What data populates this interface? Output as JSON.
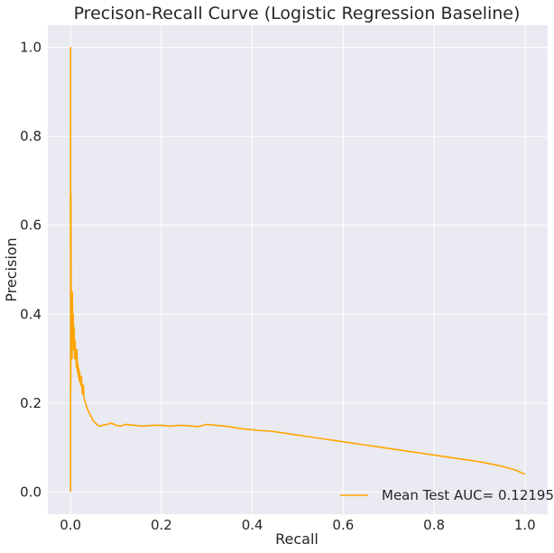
{
  "chart_data": {
    "type": "line",
    "title": "Precison-Recall Curve (Logistic Regression Baseline)",
    "xlabel": "Recall",
    "ylabel": "Precision",
    "xlim": [
      -0.05,
      1.05
    ],
    "ylim": [
      -0.05,
      1.05
    ],
    "xticks": [
      0.0,
      0.2,
      0.4,
      0.6,
      0.8,
      1.0
    ],
    "yticks": [
      0.0,
      0.2,
      0.4,
      0.6,
      0.8,
      1.0
    ],
    "xtick_labels": [
      "0.0",
      "0.2",
      "0.4",
      "0.6",
      "0.8",
      "1.0"
    ],
    "ytick_labels": [
      "0.0",
      "0.2",
      "0.4",
      "0.6",
      "0.8",
      "1.0"
    ],
    "grid": true,
    "background_color": "#eaeaf2",
    "legend_position": "bottom-right",
    "series": [
      {
        "name": "Mean Test AUC= 0.12195",
        "color": "#ffa500",
        "x": [
          0.0,
          0.0,
          0.0005,
          0.001,
          0.0015,
          0.002,
          0.0025,
          0.003,
          0.0035,
          0.004,
          0.005,
          0.006,
          0.007,
          0.008,
          0.009,
          0.01,
          0.011,
          0.012,
          0.013,
          0.014,
          0.015,
          0.016,
          0.017,
          0.018,
          0.019,
          0.02,
          0.022,
          0.024,
          0.026,
          0.028,
          0.03,
          0.033,
          0.036,
          0.04,
          0.045,
          0.05,
          0.055,
          0.06,
          0.065,
          0.07,
          0.08,
          0.09,
          0.1,
          0.11,
          0.12,
          0.14,
          0.16,
          0.18,
          0.2,
          0.22,
          0.24,
          0.26,
          0.28,
          0.3,
          0.32,
          0.34,
          0.36,
          0.38,
          0.4,
          0.42,
          0.44,
          0.46,
          0.48,
          0.5,
          0.52,
          0.54,
          0.56,
          0.58,
          0.6,
          0.62,
          0.64,
          0.66,
          0.68,
          0.7,
          0.72,
          0.74,
          0.76,
          0.78,
          0.8,
          0.82,
          0.84,
          0.86,
          0.88,
          0.9,
          0.92,
          0.94,
          0.96,
          0.98,
          1.0
        ],
        "y": [
          0.0,
          1.0,
          0.23,
          0.67,
          0.3,
          0.43,
          0.36,
          0.38,
          0.3,
          0.45,
          0.35,
          0.4,
          0.32,
          0.37,
          0.3,
          0.34,
          0.31,
          0.3,
          0.28,
          0.32,
          0.27,
          0.29,
          0.26,
          0.28,
          0.25,
          0.27,
          0.24,
          0.26,
          0.22,
          0.24,
          0.21,
          0.2,
          0.19,
          0.18,
          0.17,
          0.16,
          0.155,
          0.15,
          0.148,
          0.15,
          0.152,
          0.155,
          0.15,
          0.148,
          0.152,
          0.15,
          0.148,
          0.15,
          0.15,
          0.148,
          0.15,
          0.149,
          0.147,
          0.152,
          0.15,
          0.148,
          0.145,
          0.142,
          0.14,
          0.138,
          0.137,
          0.134,
          0.131,
          0.128,
          0.125,
          0.122,
          0.119,
          0.116,
          0.113,
          0.11,
          0.107,
          0.104,
          0.101,
          0.098,
          0.095,
          0.092,
          0.089,
          0.086,
          0.083,
          0.08,
          0.077,
          0.074,
          0.071,
          0.068,
          0.064,
          0.06,
          0.055,
          0.049,
          0.04
        ]
      }
    ]
  }
}
